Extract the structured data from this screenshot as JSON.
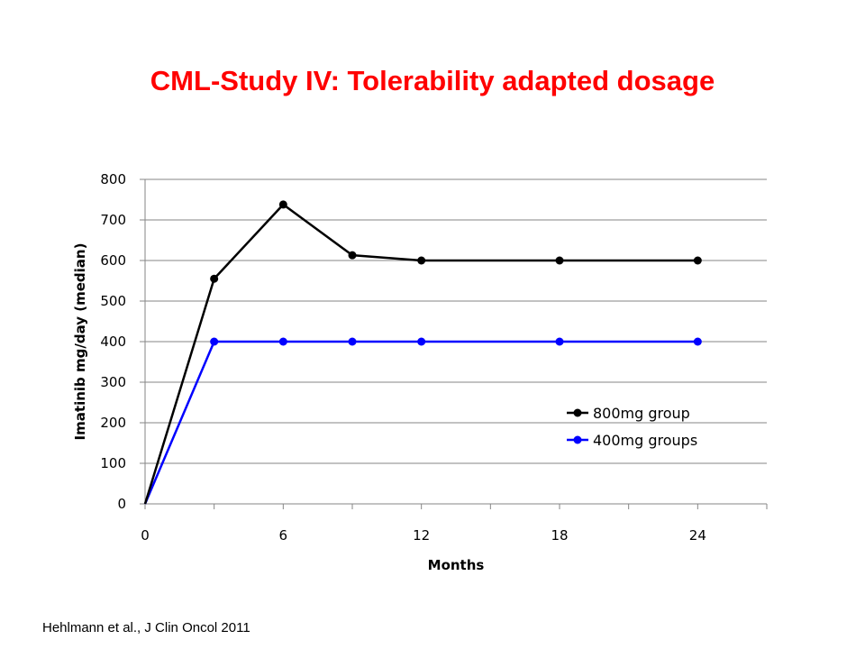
{
  "slide": {
    "title": "CML-Study IV: Tolerability adapted dosage",
    "citation": "Hehlmann et al., J Clin Oncol 2011",
    "title_color": "#ff0000"
  },
  "chart_data": {
    "type": "line",
    "title": "",
    "xlabel": "Months",
    "ylabel": "Imatinib mg/day (median)",
    "xlim": [
      0,
      27
    ],
    "ylim": [
      0,
      800
    ],
    "x_ticks": [
      0,
      6,
      12,
      18,
      24
    ],
    "x_minor_ticks": [
      3,
      9,
      15,
      21,
      27
    ],
    "y_ticks": [
      0,
      100,
      200,
      300,
      400,
      500,
      600,
      700,
      800
    ],
    "grid": "horizontal",
    "legend_position": "right",
    "series": [
      {
        "name": "800mg group",
        "color": "#000000",
        "x": [
          0,
          3,
          6,
          9,
          12,
          18,
          24
        ],
        "y": [
          0,
          555,
          738,
          613,
          600,
          600,
          600
        ]
      },
      {
        "name": "400mg groups",
        "color": "#0000ff",
        "x": [
          0,
          3,
          6,
          9,
          12,
          18,
          24
        ],
        "y": [
          0,
          400,
          400,
          400,
          400,
          400,
          400
        ]
      }
    ]
  }
}
